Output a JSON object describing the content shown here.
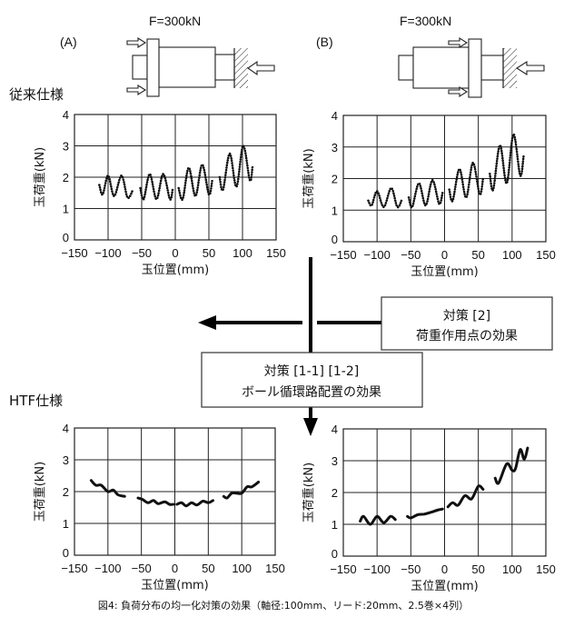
{
  "header": {
    "label_a": "(A)",
    "label_b": "(B)",
    "force_a": "F=300kN",
    "force_b": "F=300kN"
  },
  "sections": {
    "conventional": "従来仕様",
    "htf": "HTF仕様"
  },
  "boxes": {
    "measure2_title": "対策 [2]",
    "measure2_desc": "荷重作用点の効果",
    "measure1_title": "対策 [1-1] [1-2]",
    "measure1_desc": "ボール循環路配置の効果"
  },
  "caption": "図4: 負荷分布の均一化対策の効果（軸径:100mm、リード:20mm、2.5巻×4列）",
  "colors": {
    "ink": "#111111",
    "background": "#ffffff"
  },
  "chart_data": [
    {
      "id": "conventional-A",
      "type": "line",
      "style": "dotted",
      "xlabel": "玉位置(mm)",
      "ylabel": "玉荷重(kN)",
      "xlim": [
        -150,
        150
      ],
      "ylim": [
        0,
        4
      ],
      "xticks": [
        "-150",
        "-100",
        "-50",
        "0",
        "50",
        "100",
        "150"
      ],
      "yticks": [
        "0",
        "1",
        "2",
        "3",
        "4"
      ],
      "grid": true,
      "series": [
        [
          [
            -113,
            1.75
          ],
          [
            -108,
            1.45
          ],
          [
            -100,
            2.05
          ],
          [
            -91,
            1.4
          ],
          [
            -80,
            2.05
          ],
          [
            -71,
            1.35
          ],
          [
            -63,
            1.6
          ]
        ],
        [
          [
            -52,
            1.65
          ],
          [
            -47,
            1.3
          ],
          [
            -38,
            2.1
          ],
          [
            -28,
            1.3
          ],
          [
            -18,
            2.1
          ],
          [
            -8,
            1.3
          ],
          [
            -4,
            1.6
          ]
        ],
        [
          [
            5,
            1.65
          ],
          [
            11,
            1.3
          ],
          [
            20,
            2.3
          ],
          [
            30,
            1.4
          ],
          [
            40,
            2.4
          ],
          [
            50,
            1.45
          ],
          [
            55,
            1.9
          ]
        ],
        [
          [
            66,
            2.0
          ],
          [
            71,
            1.6
          ],
          [
            81,
            2.75
          ],
          [
            91,
            1.7
          ],
          [
            101,
            3.0
          ],
          [
            111,
            1.9
          ],
          [
            115,
            2.35
          ]
        ]
      ]
    },
    {
      "id": "conventional-B",
      "type": "line",
      "style": "dotted",
      "xlabel": "玉位置(mm)",
      "ylabel": "玉荷重(kN)",
      "xlim": [
        -150,
        150
      ],
      "ylim": [
        0,
        4
      ],
      "xticks": [
        "-150",
        "-100",
        "-50",
        "0",
        "50",
        "100",
        "150"
      ],
      "yticks": [
        "0",
        "1",
        "2",
        "3",
        "4"
      ],
      "grid": true,
      "series": [
        [
          [
            -113,
            1.3
          ],
          [
            -108,
            1.15
          ],
          [
            -100,
            1.6
          ],
          [
            -90,
            1.1
          ],
          [
            -79,
            1.7
          ],
          [
            -70,
            1.1
          ],
          [
            -63,
            1.35
          ]
        ],
        [
          [
            -53,
            1.4
          ],
          [
            -48,
            1.1
          ],
          [
            -38,
            1.85
          ],
          [
            -28,
            1.15
          ],
          [
            -18,
            1.95
          ],
          [
            -8,
            1.2
          ],
          [
            -3,
            1.55
          ]
        ],
        [
          [
            7,
            1.65
          ],
          [
            12,
            1.3
          ],
          [
            22,
            2.3
          ],
          [
            32,
            1.4
          ],
          [
            42,
            2.5
          ],
          [
            52,
            1.5
          ],
          [
            57,
            2.0
          ]
        ],
        [
          [
            67,
            2.15
          ],
          [
            72,
            1.65
          ],
          [
            82,
            3.05
          ],
          [
            92,
            1.85
          ],
          [
            102,
            3.4
          ],
          [
            112,
            2.1
          ],
          [
            117,
            2.7
          ]
        ]
      ]
    },
    {
      "id": "htf-A",
      "type": "line",
      "style": "solid",
      "xlabel": "玉位置(mm)",
      "ylabel": "玉荷重(kN)",
      "xlim": [
        -150,
        150
      ],
      "ylim": [
        0,
        4
      ],
      "xticks": [
        "-150",
        "-100",
        "-50",
        "0",
        "50",
        "100",
        "150"
      ],
      "yticks": [
        "0",
        "1",
        "2",
        "3",
        "4"
      ],
      "grid": true,
      "series": [
        [
          [
            -125,
            2.35
          ],
          [
            -118,
            2.2
          ],
          [
            -110,
            2.2
          ],
          [
            -100,
            2.0
          ],
          [
            -92,
            2.05
          ],
          [
            -85,
            1.9
          ],
          [
            -75,
            1.85
          ]
        ],
        [
          [
            -55,
            1.8
          ],
          [
            -48,
            1.75
          ],
          [
            -40,
            1.65
          ],
          [
            -32,
            1.72
          ],
          [
            -25,
            1.62
          ],
          [
            -15,
            1.68
          ],
          [
            -8,
            1.6
          ],
          [
            -2,
            1.6
          ]
        ],
        [
          [
            3,
            1.6
          ],
          [
            10,
            1.65
          ],
          [
            17,
            1.55
          ],
          [
            25,
            1.65
          ],
          [
            33,
            1.58
          ],
          [
            42,
            1.7
          ],
          [
            50,
            1.65
          ],
          [
            57,
            1.72
          ]
        ],
        [
          [
            73,
            1.85
          ],
          [
            78,
            1.8
          ],
          [
            85,
            1.95
          ],
          [
            92,
            1.95
          ],
          [
            100,
            1.95
          ],
          [
            108,
            2.15
          ],
          [
            115,
            2.15
          ],
          [
            125,
            2.3
          ]
        ]
      ]
    },
    {
      "id": "htf-B",
      "type": "line",
      "style": "solid",
      "xlabel": "玉位置(mm)",
      "ylabel": "玉荷重(kN)",
      "xlim": [
        -150,
        150
      ],
      "ylim": [
        0,
        4
      ],
      "xticks": [
        "-150",
        "-100",
        "-50",
        "0",
        "50",
        "100",
        "150"
      ],
      "yticks": [
        "0",
        "1",
        "2",
        "3",
        "4"
      ],
      "grid": true,
      "series": [
        [
          [
            -125,
            1.1
          ],
          [
            -120,
            1.25
          ],
          [
            -110,
            1.0
          ],
          [
            -100,
            1.25
          ],
          [
            -90,
            1.05
          ],
          [
            -80,
            1.25
          ],
          [
            -73,
            1.15
          ]
        ],
        [
          [
            -55,
            1.25
          ],
          [
            -50,
            1.2
          ],
          [
            -40,
            1.3
          ],
          [
            -30,
            1.32
          ],
          [
            -20,
            1.38
          ],
          [
            -10,
            1.45
          ],
          [
            -3,
            1.48
          ]
        ],
        [
          [
            5,
            1.55
          ],
          [
            12,
            1.68
          ],
          [
            20,
            1.6
          ],
          [
            30,
            1.9
          ],
          [
            40,
            1.8
          ],
          [
            50,
            2.2
          ],
          [
            57,
            2.1
          ]
        ],
        [
          [
            75,
            2.45
          ],
          [
            80,
            2.3
          ],
          [
            92,
            2.9
          ],
          [
            100,
            2.7
          ],
          [
            105,
            2.75
          ],
          [
            112,
            3.35
          ],
          [
            118,
            3.05
          ],
          [
            123,
            3.4
          ]
        ]
      ]
    }
  ]
}
